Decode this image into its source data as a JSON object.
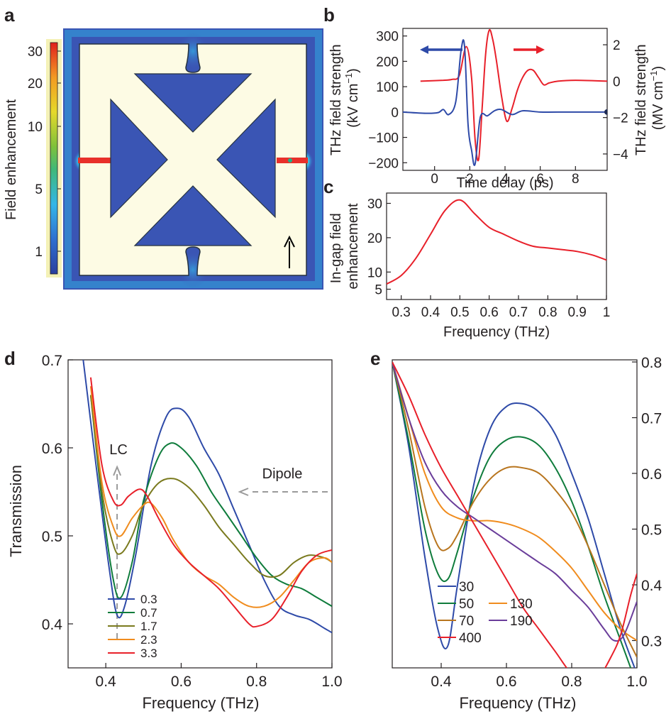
{
  "panels": {
    "a": "a",
    "b": "b",
    "c": "c",
    "d": "d",
    "e": "e"
  },
  "colors": {
    "red": "#e8202a",
    "blue": "#2e4aa8",
    "green": "#0f7c3c",
    "olive": "#7a7a1e",
    "orange": "#f08c1e",
    "brown": "#b8751e",
    "purple": "#6a3d9a",
    "substrate": "#3a55b4",
    "metal": "#fdfbe4",
    "grey": "#9a9a9a"
  },
  "chart_data": [
    {
      "id": "a",
      "type": "heatmap",
      "colorbar": {
        "label": "Field enhancement",
        "ticks": [
          "30",
          "20",
          "10",
          "5",
          "1"
        ],
        "tick_values": [
          30,
          20,
          10,
          5,
          1
        ]
      },
      "arrow": "polarization-vertical"
    },
    {
      "id": "b",
      "type": "line",
      "xlabel": "Time delay (ps)",
      "ylabel_left": "THz field strength (kV cm⁻¹)",
      "ylabel_right": "THz field strength (MV cm⁻¹)",
      "xlim": [
        -1.8,
        9.8
      ],
      "ylim_left": [
        -230,
        330
      ],
      "ylim_right": [
        -4.9,
        2.9
      ],
      "xticks": [
        "0",
        "2",
        "4",
        "6",
        "8"
      ],
      "yticks_left": [
        "300",
        "200",
        "100",
        "0",
        "−100",
        "−200"
      ],
      "yticks_right": [
        "2",
        "0",
        "−2",
        "−4"
      ],
      "series": [
        {
          "axis": "right",
          "color": "#e8202a",
          "x": [
            -0.8,
            0.5,
            1.0,
            1.4,
            1.8,
            2.1,
            2.3,
            2.5,
            2.7,
            2.9,
            3.1,
            3.3,
            3.5,
            3.8,
            4.1,
            4.4,
            4.7,
            5.0,
            5.3,
            5.6,
            5.9,
            6.2,
            6.5,
            7.0,
            8.0,
            9.8
          ],
          "y": [
            0.0,
            0.05,
            0.1,
            0.3,
            1.9,
            0.2,
            -3.2,
            -4.3,
            -1.5,
            1.5,
            2.8,
            2.3,
            1.2,
            -0.8,
            -2.2,
            -1.5,
            -0.5,
            0.2,
            0.6,
            0.6,
            0.2,
            -0.2,
            -0.1,
            0.0,
            0.05,
            0.0
          ]
        },
        {
          "axis": "left",
          "color": "#2e4aa8",
          "x": [
            -1.8,
            -0.5,
            0.2,
            0.5,
            0.8,
            1.2,
            1.5,
            1.7,
            1.9,
            2.1,
            2.3,
            2.6,
            3.0,
            3.4,
            3.8,
            4.4,
            5.0,
            6.0,
            7.0,
            9.8
          ],
          "y": [
            0,
            -5,
            -2,
            10,
            -10,
            40,
            240,
            260,
            -50,
            -150,
            -205,
            -20,
            -15,
            5,
            10,
            -10,
            5,
            0,
            0,
            0
          ]
        }
      ],
      "arrows": [
        {
          "color": "#2e4aa8",
          "direction": "left"
        },
        {
          "color": "#e8202a",
          "direction": "right"
        }
      ]
    },
    {
      "id": "c",
      "type": "line",
      "xlabel": "Frequency (THz)",
      "ylabel": "In-gap field enhancement",
      "xlim": [
        0.25,
        1.0
      ],
      "ylim": [
        2,
        33
      ],
      "xticks": [
        "0.3",
        "0.4",
        "0.5",
        "0.6",
        "0.7",
        "0.8",
        "0.9",
        "1"
      ],
      "yticks": [
        "30",
        "20",
        "10",
        "5"
      ],
      "series": [
        {
          "color": "#e8202a",
          "x": [
            0.25,
            0.3,
            0.35,
            0.4,
            0.45,
            0.5,
            0.55,
            0.6,
            0.65,
            0.7,
            0.75,
            0.8,
            0.85,
            0.9,
            0.95,
            1.0
          ],
          "y": [
            6.5,
            9,
            14,
            21,
            28,
            31,
            27,
            23,
            21,
            19,
            17.5,
            17,
            16.5,
            16,
            15,
            13.5
          ]
        }
      ]
    },
    {
      "id": "d",
      "type": "line",
      "xlabel": "Frequency (THz)",
      "ylabel": "Transmission",
      "xlim": [
        0.3,
        1.0
      ],
      "ylim": [
        0.35,
        0.7
      ],
      "xticks": [
        "0.4",
        "0.6",
        "0.8",
        "1.0"
      ],
      "yticks": [
        "0.7",
        "0.6",
        "0.5",
        "0.4"
      ],
      "annotations": [
        "LC",
        "Dipole"
      ],
      "legend": [
        "0.3",
        "0.7",
        "1.7",
        "2.3",
        "3.3"
      ],
      "series": [
        {
          "name": "0.3",
          "color": "#2e4aa8",
          "x": [
            0.34,
            0.38,
            0.41,
            0.43,
            0.45,
            0.48,
            0.52,
            0.56,
            0.59,
            0.62,
            0.66,
            0.7,
            0.74,
            0.78,
            0.82,
            0.86,
            0.9,
            0.94,
            0.98,
            1.0
          ],
          "y": [
            0.7,
            0.56,
            0.46,
            0.41,
            0.42,
            0.48,
            0.58,
            0.635,
            0.645,
            0.635,
            0.6,
            0.57,
            0.53,
            0.49,
            0.45,
            0.42,
            0.41,
            0.405,
            0.395,
            0.39
          ]
        },
        {
          "name": "0.7",
          "color": "#0f7c3c",
          "x": [
            0.36,
            0.39,
            0.42,
            0.44,
            0.47,
            0.5,
            0.54,
            0.57,
            0.6,
            0.64,
            0.68,
            0.72,
            0.76,
            0.8,
            0.84,
            0.88,
            0.92,
            0.96,
            1.0
          ],
          "y": [
            0.66,
            0.54,
            0.45,
            0.43,
            0.47,
            0.54,
            0.59,
            0.605,
            0.6,
            0.58,
            0.55,
            0.525,
            0.5,
            0.475,
            0.455,
            0.445,
            0.44,
            0.43,
            0.42
          ]
        },
        {
          "name": "1.7",
          "color": "#7a7a1e",
          "x": [
            0.36,
            0.39,
            0.42,
            0.44,
            0.47,
            0.5,
            0.54,
            0.58,
            0.62,
            0.66,
            0.7,
            0.74,
            0.78,
            0.82,
            0.86,
            0.9,
            0.94,
            0.98,
            1.0
          ],
          "y": [
            0.66,
            0.55,
            0.49,
            0.48,
            0.5,
            0.535,
            0.56,
            0.565,
            0.555,
            0.535,
            0.51,
            0.49,
            0.47,
            0.455,
            0.455,
            0.47,
            0.478,
            0.475,
            0.47
          ]
        },
        {
          "name": "2.3",
          "color": "#f08c1e",
          "x": [
            0.36,
            0.39,
            0.42,
            0.44,
            0.47,
            0.5,
            0.52,
            0.55,
            0.58,
            0.62,
            0.66,
            0.7,
            0.74,
            0.78,
            0.82,
            0.86,
            0.9,
            0.94,
            0.98,
            1.0
          ],
          "y": [
            0.67,
            0.56,
            0.51,
            0.5,
            0.52,
            0.535,
            0.537,
            0.52,
            0.495,
            0.47,
            0.455,
            0.445,
            0.43,
            0.42,
            0.42,
            0.43,
            0.45,
            0.47,
            0.475,
            0.47
          ]
        },
        {
          "name": "3.3",
          "color": "#e8202a",
          "x": [
            0.36,
            0.39,
            0.42,
            0.44,
            0.46,
            0.49,
            0.51,
            0.54,
            0.58,
            0.62,
            0.66,
            0.7,
            0.74,
            0.78,
            0.8,
            0.84,
            0.88,
            0.92,
            0.96,
            1.0
          ],
          "y": [
            0.68,
            0.58,
            0.54,
            0.535,
            0.545,
            0.553,
            0.545,
            0.52,
            0.49,
            0.47,
            0.455,
            0.44,
            0.42,
            0.4,
            0.397,
            0.405,
            0.43,
            0.46,
            0.478,
            0.484
          ]
        }
      ]
    },
    {
      "id": "e",
      "type": "line",
      "xlabel": "Frequency (THz)",
      "ylabel": "",
      "xlim": [
        0.25,
        1.0
      ],
      "ylim": [
        0.2,
        0.8
      ],
      "xticks": [
        "0.4",
        "0.6",
        "0.8",
        "1.0"
      ],
      "yticks": [
        "0.8",
        "0.7",
        "0.6",
        "0.5",
        "0.4",
        "0.3"
      ],
      "legend": [
        "30",
        "50",
        "130",
        "70",
        "190",
        "400"
      ],
      "series": [
        {
          "name": "30",
          "color": "#2e4aa8",
          "x": [
            0.25,
            0.3,
            0.35,
            0.39,
            0.42,
            0.45,
            0.5,
            0.55,
            0.6,
            0.65,
            0.7,
            0.75,
            0.8,
            0.85,
            0.9,
            0.95,
            1.0
          ],
          "y": [
            0.8,
            0.65,
            0.45,
            0.32,
            0.29,
            0.4,
            0.58,
            0.68,
            0.72,
            0.725,
            0.71,
            0.67,
            0.6,
            0.52,
            0.42,
            0.32,
            0.24
          ]
        },
        {
          "name": "50",
          "color": "#0f7c3c",
          "x": [
            0.25,
            0.3,
            0.35,
            0.39,
            0.42,
            0.45,
            0.5,
            0.55,
            0.6,
            0.65,
            0.7,
            0.75,
            0.8,
            0.85,
            0.9,
            0.95,
            1.0
          ],
          "y": [
            0.8,
            0.66,
            0.5,
            0.42,
            0.41,
            0.46,
            0.56,
            0.63,
            0.66,
            0.665,
            0.65,
            0.61,
            0.55,
            0.47,
            0.38,
            0.3,
            0.22
          ]
        },
        {
          "name": "70",
          "color": "#b8751e",
          "x": [
            0.25,
            0.3,
            0.35,
            0.39,
            0.42,
            0.45,
            0.5,
            0.55,
            0.6,
            0.65,
            0.7,
            0.75,
            0.8,
            0.85,
            0.9,
            0.95,
            1.0
          ],
          "y": [
            0.8,
            0.68,
            0.54,
            0.47,
            0.465,
            0.49,
            0.55,
            0.59,
            0.61,
            0.61,
            0.6,
            0.57,
            0.53,
            0.47,
            0.4,
            0.33,
            0.27
          ]
        },
        {
          "name": "130",
          "color": "#f08c1e",
          "x": [
            0.25,
            0.3,
            0.35,
            0.4,
            0.45,
            0.5,
            0.55,
            0.6,
            0.65,
            0.7,
            0.75,
            0.8,
            0.85,
            0.9,
            0.95,
            1.0
          ],
          "y": [
            0.8,
            0.7,
            0.6,
            0.54,
            0.52,
            0.515,
            0.515,
            0.51,
            0.5,
            0.485,
            0.46,
            0.43,
            0.39,
            0.35,
            0.32,
            0.3
          ]
        },
        {
          "name": "190",
          "color": "#6a3d9a",
          "x": [
            0.25,
            0.3,
            0.35,
            0.4,
            0.45,
            0.5,
            0.55,
            0.6,
            0.65,
            0.7,
            0.75,
            0.8,
            0.85,
            0.9,
            0.93,
            0.96,
            1.0
          ],
          "y": [
            0.8,
            0.7,
            0.62,
            0.57,
            0.54,
            0.52,
            0.5,
            0.48,
            0.46,
            0.44,
            0.42,
            0.39,
            0.36,
            0.32,
            0.3,
            0.31,
            0.37
          ]
        },
        {
          "name": "400",
          "color": "#e8202a",
          "x": [
            0.25,
            0.3,
            0.35,
            0.4,
            0.45,
            0.5,
            0.55,
            0.6,
            0.65,
            0.7,
            0.75,
            0.8,
            0.85,
            0.88,
            0.92,
            0.95,
            0.98,
            1.0
          ],
          "y": [
            0.8,
            0.74,
            0.67,
            0.61,
            0.56,
            0.51,
            0.46,
            0.41,
            0.36,
            0.32,
            0.28,
            0.24,
            0.22,
            0.23,
            0.27,
            0.31,
            0.38,
            0.42
          ]
        }
      ]
    }
  ]
}
